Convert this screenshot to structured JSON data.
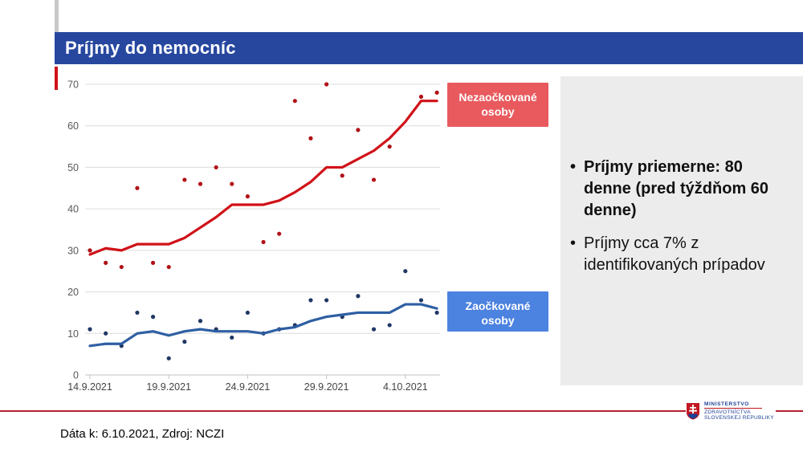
{
  "slide": {
    "title": "Príjmy do nemocníc",
    "footer": "Dáta k: 6.10.2021, Zdroj: NCZI",
    "bullets": [
      {
        "text": "Príjmy priemerne: 80 denne (pred týždňom 60 denne)",
        "bold": true
      },
      {
        "text": "Príjmy cca 7% z identifikovaných prípadov",
        "bold": false
      }
    ],
    "logo": {
      "line1": "MINISTERSTVO",
      "line2": "ZDRAVOTNÍCTVA",
      "line3": "SLOVENSKEJ REPUBLIKY"
    }
  },
  "colors": {
    "title_bar": "#27479F",
    "legend_red": "#E85A5E",
    "legend_blue": "#4C82E0",
    "line_red": "#D01218",
    "dot_red": "#B11217",
    "line_blue": "#2E5FA3",
    "dot_blue": "#203864",
    "panel_gray": "#ECECEC",
    "grid": "#DCDCDC",
    "axis": "#C0C0C0",
    "bottom_rule_red": "#B22330"
  },
  "chart_data": {
    "type": "line",
    "title": "Príjmy do nemocníc",
    "xlabel": "",
    "ylabel": "",
    "ylim": [
      0,
      70
    ],
    "yticks": [
      0,
      10,
      20,
      30,
      40,
      50,
      60,
      70
    ],
    "grid": true,
    "x": [
      "14.9.2021",
      "15.9.2021",
      "16.9.2021",
      "17.9.2021",
      "18.9.2021",
      "19.9.2021",
      "20.9.2021",
      "21.9.2021",
      "22.9.2021",
      "23.9.2021",
      "24.9.2021",
      "25.9.2021",
      "26.9.2021",
      "27.9.2021",
      "28.9.2021",
      "29.9.2021",
      "30.9.2021",
      "1.10.2021",
      "2.10.2021",
      "3.10.2021",
      "4.10.2021",
      "5.10.2021",
      "6.10.2021"
    ],
    "x_tick_labels": [
      "14.9.2021",
      "19.9.2021",
      "24.9.2021",
      "29.9.2021",
      "4.10.2021"
    ],
    "x_tick_indices": [
      0,
      5,
      10,
      15,
      20
    ],
    "series": [
      {
        "name": "Nezaočkované osoby – denné príjmy (body)",
        "type": "scatter",
        "color": "#B11217",
        "values": [
          30,
          27,
          26,
          45,
          27,
          26,
          47,
          46,
          50,
          46,
          43,
          32,
          34,
          66,
          57,
          70,
          48,
          59,
          47,
          55,
          null,
          67,
          68
        ]
      },
      {
        "name": "Nezaočkované osoby – kĺzavý priemer (čiara)",
        "type": "line",
        "color": "#D01218",
        "values": [
          29,
          30.5,
          30,
          31.5,
          31.5,
          31.5,
          33,
          35.5,
          38,
          41,
          41,
          41,
          42,
          44,
          46.5,
          50,
          50,
          52,
          54,
          57,
          61,
          66,
          66
        ]
      },
      {
        "name": "Zaočkované osoby – denné príjmy (body)",
        "type": "scatter",
        "color": "#203864",
        "values": [
          11,
          10,
          7,
          15,
          14,
          4,
          8,
          13,
          11,
          9,
          15,
          10,
          11,
          12,
          18,
          18,
          14,
          19,
          11,
          12,
          25,
          18,
          15
        ]
      },
      {
        "name": "Zaočkované osoby – kĺzavý priemer (čiara)",
        "type": "line",
        "color": "#2E5FA3",
        "values": [
          7,
          7.5,
          7.5,
          10,
          10.5,
          9.5,
          10.5,
          11,
          10.5,
          10.5,
          10.5,
          10,
          11,
          11.5,
          13,
          14,
          14.5,
          15,
          15,
          15,
          17,
          17,
          16
        ]
      }
    ],
    "legend": [
      {
        "label": "Nezaočkované osoby",
        "color": "#E85A5E"
      },
      {
        "label": "Zaočkované osoby",
        "color": "#4C82E0"
      }
    ],
    "legend_position": "right-of-series"
  }
}
